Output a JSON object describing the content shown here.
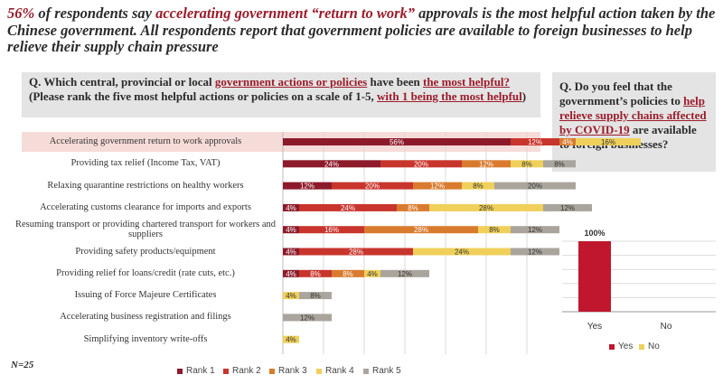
{
  "headline": {
    "part1": "56%",
    "part2": " of respondents say ",
    "part3": "accelerating government “return to work”",
    "part4": " approvals is the most helpful action taken by the Chinese government. All respondents report that government policies are available to foreign businesses to help relieve their supply chain pressure"
  },
  "left_question": {
    "prefix": "Q. Which central, provincial or local ",
    "highlight1": "government actions or policies",
    "middle": " have been ",
    "highlight2": "the most helpful?",
    "suffix": " (Please rank the five most helpful actions or policies on a scale of 1-5, ",
    "highlight3": "with 1 being the most helpful",
    "end": ")"
  },
  "right_question": {
    "prefix": "Q. Do you feel that the government’s policies to ",
    "highlight": "help relieve supply chains affected by COVID-19",
    "suffix": " are available to foreign businesses?"
  },
  "n_label": "N=25",
  "colors": {
    "rank1": "#8c1a2a",
    "rank2": "#c8352c",
    "rank3": "#d97b2e",
    "rank4": "#f0d05a",
    "rank5": "#aaa59c",
    "highlight_row": "#f6dcd8",
    "yes": "#c0172f",
    "no": "#f0d05a"
  },
  "chart_data": [
    {
      "type": "bar",
      "stacked": true,
      "orientation": "horizontal",
      "categories": [
        "Accelerating government return to work approvals",
        "Providing tax relief (Income Tax, VAT)",
        "Relaxing quarantine restrictions on healthy workers",
        "Accelerating customs clearance for imports and exports",
        "Resuming transport or providing chartered transport for workers and suppliers",
        "Providing safety products/equipment",
        "Providing relief for loans/credit (rate cuts, etc.)",
        "Issuing of Force Majeure Certificates",
        "Accelerating business registration and filings",
        "Simplifying inventory write-offs"
      ],
      "series": [
        {
          "name": "Rank 1",
          "values": [
            56,
            24,
            12,
            4,
            4,
            4,
            4,
            0,
            0,
            0
          ]
        },
        {
          "name": "Rank 2",
          "values": [
            12,
            20,
            20,
            24,
            16,
            28,
            8,
            0,
            0,
            0
          ]
        },
        {
          "name": "Rank 3",
          "values": [
            4,
            12,
            12,
            8,
            28,
            0,
            8,
            0,
            0,
            0
          ]
        },
        {
          "name": "Rank 4",
          "values": [
            16,
            8,
            8,
            28,
            8,
            24,
            4,
            4,
            0,
            4
          ]
        },
        {
          "name": "Rank 5",
          "values": [
            0,
            8,
            20,
            12,
            12,
            12,
            12,
            8,
            12,
            0
          ]
        }
      ],
      "xlim": [
        0,
        100
      ],
      "grid": true,
      "legend": "bottom"
    },
    {
      "type": "bar",
      "categories": [
        "Yes",
        "No"
      ],
      "values": [
        100,
        0
      ],
      "series": [
        {
          "name": "Yes",
          "values": [
            100,
            0
          ]
        },
        {
          "name": "No",
          "values": [
            0,
            0
          ]
        }
      ],
      "ylim": [
        0,
        100
      ],
      "grid": true,
      "legend": "bottom"
    }
  ]
}
